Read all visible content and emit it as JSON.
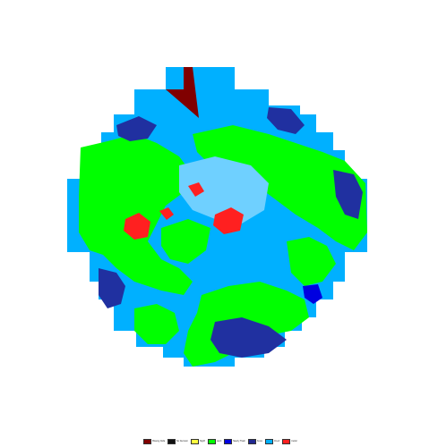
{
  "map": {
    "colors": {
      "water": "#00b0ff",
      "land": "#00ff00",
      "sea_ice": "#2030a0",
      "deep": "#0000e0",
      "snow_ice": "#ff2020",
      "missing": "#800000"
    }
  },
  "legend": {
    "items": [
      {
        "label": "Missing Data",
        "color": "#800000"
      },
      {
        "label": "No Decision",
        "color": "#111111"
      },
      {
        "label": "Night",
        "color": "#ffff40"
      },
      {
        "label": "Land",
        "color": "#00ff00"
      },
      {
        "label": "Nearly Fresh",
        "color": "#0000e0"
      },
      {
        "label": "Snow",
        "color": "#202890"
      },
      {
        "label": "Cloud",
        "color": "#00b0ff"
      },
      {
        "label": "Ice/Air",
        "color": "#ff2020"
      }
    ]
  }
}
